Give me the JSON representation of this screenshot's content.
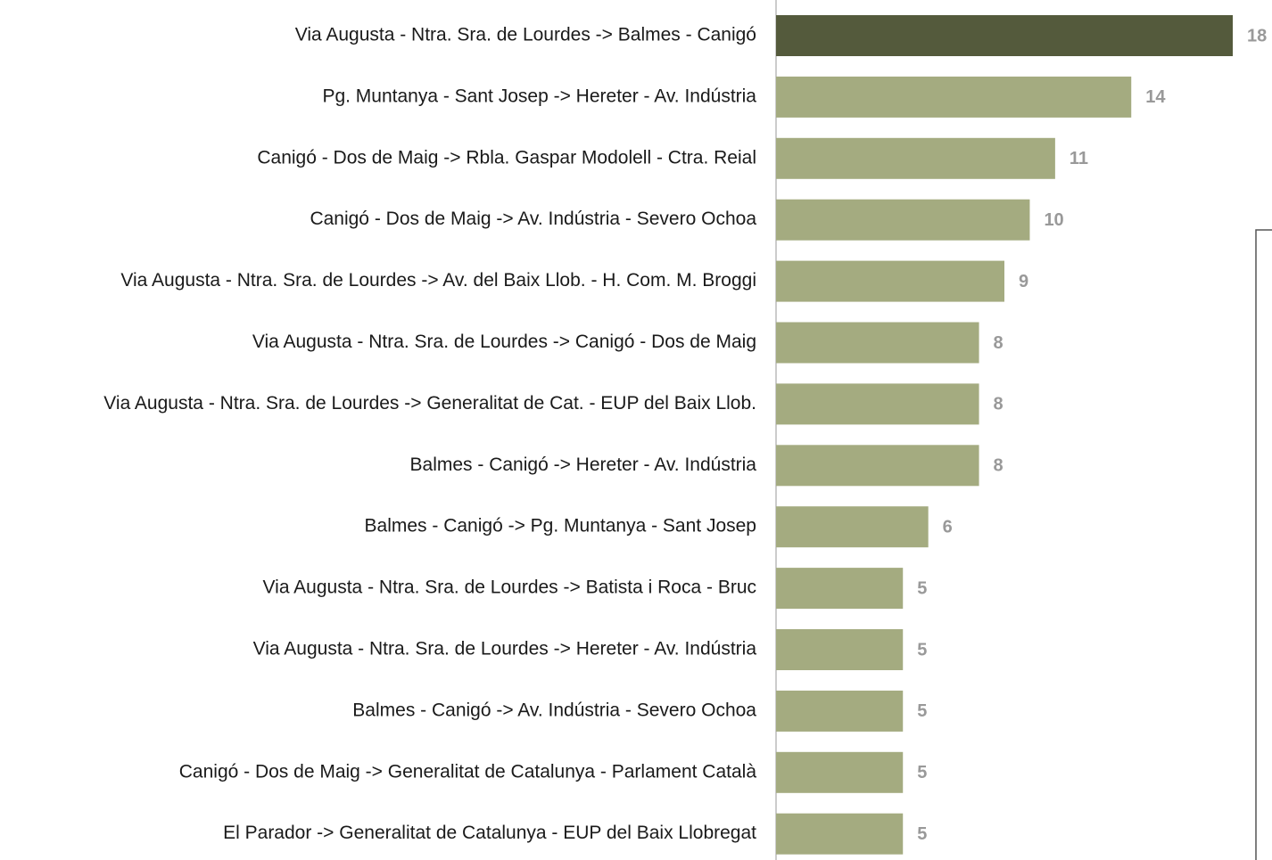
{
  "chart_data": {
    "type": "barh",
    "categories": [
      "Via Augusta - Ntra. Sra. de Lourdes -> Balmes - Canigó",
      "Pg. Muntanya - Sant Josep -> Hereter - Av. Indústria",
      "Canigó - Dos de Maig -> Rbla. Gaspar Modolell - Ctra. Reial",
      "Canigó - Dos de Maig -> Av. Indústria - Severo Ochoa",
      "Via Augusta - Ntra. Sra. de Lourdes -> Av. del Baix Llob. - H. Com. M. Broggi",
      "Via Augusta - Ntra. Sra. de Lourdes -> Canigó - Dos de Maig",
      "Via Augusta - Ntra. Sra. de Lourdes -> Generalitat de Cat. - EUP del Baix Llob.",
      "Balmes - Canigó -> Hereter - Av. Indústria",
      "Balmes - Canigó -> Pg. Muntanya - Sant Josep",
      "Via Augusta - Ntra. Sra. de Lourdes -> Batista i Roca - Bruc",
      "Via Augusta - Ntra. Sra. de Lourdes -> Hereter - Av. Indústria",
      "Balmes - Canigó -> Av. Indústria - Severo Ochoa",
      "Canigó - Dos de Maig -> Generalitat de Catalunya - Parlament Català",
      "El Parador -> Generalitat de Catalunya - EUP del Baix Llobregat"
    ],
    "values": [
      18,
      14,
      11,
      10,
      9,
      8,
      8,
      8,
      6,
      5,
      5,
      5,
      5,
      5
    ],
    "colors": [
      "#545a3c",
      "#a4ab80",
      "#a4ab80",
      "#a4ab80",
      "#a4ab80",
      "#a4ab80",
      "#a4ab80",
      "#a4ab80",
      "#a4ab80",
      "#a4ab80",
      "#a4ab80",
      "#a4ab80",
      "#a4ab80",
      "#a4ab80"
    ],
    "xlim": [
      0,
      18
    ]
  }
}
